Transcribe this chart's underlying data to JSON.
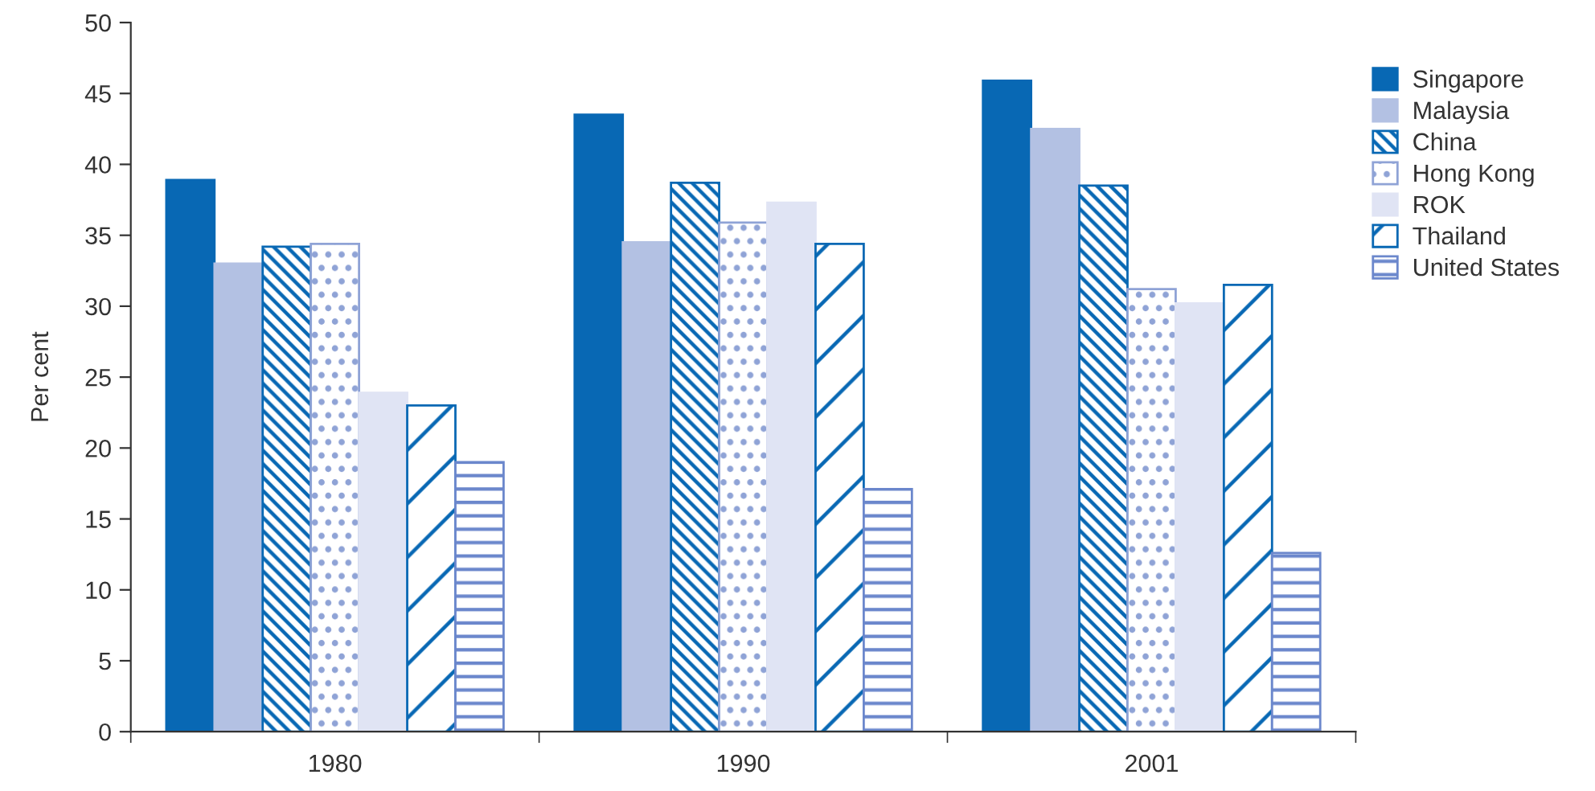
{
  "chart_data": {
    "type": "bar",
    "ylabel": "Per cent",
    "categories": [
      "1980",
      "1990",
      "2001"
    ],
    "series": [
      {
        "name": "Singapore",
        "color": "#0868b4",
        "values": [
          38.9,
          43.5,
          45.9
        ]
      },
      {
        "name": "Malaysia",
        "color": "#b3c1e3",
        "values": [
          33.0,
          34.5,
          42.5
        ]
      },
      {
        "name": "China",
        "color": "#0868b4",
        "values": [
          34.2,
          38.7,
          38.5
        ]
      },
      {
        "name": "Hong Kong",
        "color": "#8fa3d6",
        "values": [
          34.4,
          35.9,
          31.2
        ]
      },
      {
        "name": "ROK",
        "color": "#e0e4f4",
        "values": [
          23.9,
          37.3,
          30.2
        ]
      },
      {
        "name": "Thailand",
        "color": "#0868b4",
        "values": [
          23.0,
          34.4,
          31.5
        ]
      },
      {
        "name": "United States",
        "color": "#6b87cc",
        "values": [
          19.0,
          17.1,
          12.6
        ]
      }
    ],
    "ylim": [
      0,
      50
    ],
    "yticks": [
      0,
      5,
      10,
      15,
      20,
      25,
      30,
      35,
      40,
      45,
      50
    ],
    "grid": false,
    "legend": "right"
  }
}
